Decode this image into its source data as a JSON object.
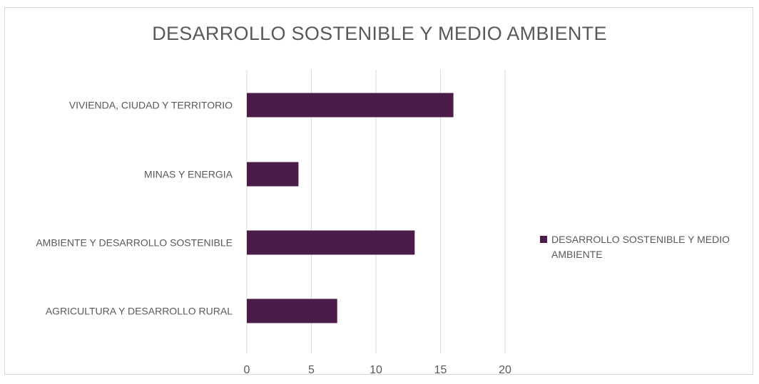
{
  "chart_data": {
    "type": "bar",
    "orientation": "horizontal",
    "title": "DESARROLLO SOSTENIBLE Y MEDIO AMBIENTE",
    "categories": [
      "VIVIENDA, CIUDAD Y TERRITORIO",
      "MINAS Y ENERGIA",
      "AMBIENTE Y DESARROLLO SOSTENIBLE",
      "AGRICULTURA Y DESARROLLO RURAL"
    ],
    "series": [
      {
        "name": "DESARROLLO SOSTENIBLE Y MEDIO AMBIENTE",
        "values": [
          16,
          4,
          13,
          7
        ],
        "color": "#4b1c47"
      }
    ],
    "xlim": [
      0,
      20
    ],
    "xticks": [
      "0",
      "5",
      "10",
      "15",
      "20"
    ],
    "grid": true,
    "legend": "right"
  }
}
